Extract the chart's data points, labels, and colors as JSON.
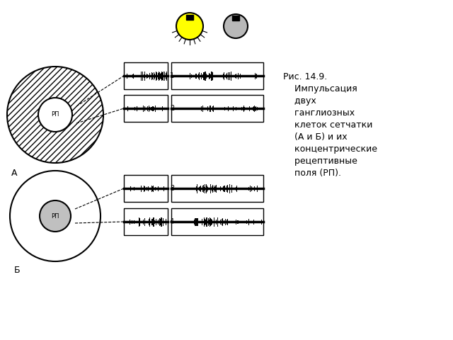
{
  "background_color": "#ffffff",
  "label_A": "А",
  "label_B": "Б",
  "label_RP": "РП",
  "caption_lines": [
    "Рис. 14.9.",
    "    Импульсация",
    "    двух",
    "    ганглиозных",
    "    клеток сетчатки",
    "    (А и Б) и их",
    "    концентрические",
    "    рецептивные",
    "    поля (РП)."
  ]
}
